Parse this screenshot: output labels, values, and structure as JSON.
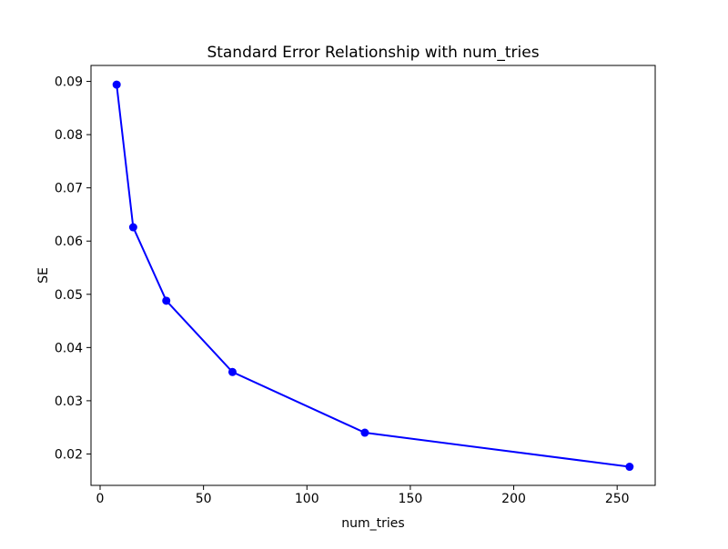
{
  "window": {
    "background_color": "#ffffff"
  },
  "chart_data": {
    "type": "line",
    "title": "Standard Error Relationship with num_tries",
    "xlabel": "num_tries",
    "ylabel": "SE",
    "x": [
      8,
      16,
      32,
      64,
      128,
      256
    ],
    "y": [
      0.0894,
      0.0626,
      0.0488,
      0.0354,
      0.024,
      0.0176
    ],
    "xlim": [
      -4.4,
      268.4
    ],
    "ylim": [
      0.0141,
      0.093
    ],
    "xticks": [
      0,
      50,
      100,
      150,
      200,
      250
    ],
    "yticks": [
      0.02,
      0.03,
      0.04,
      0.05,
      0.06,
      0.07,
      0.08,
      0.09
    ],
    "ytick_decimals": 2,
    "line_color": "#0000ff",
    "marker": "o",
    "marker_color": "#0000ff",
    "spine_color": "#000000",
    "grid": false,
    "legend_position": "none"
  }
}
